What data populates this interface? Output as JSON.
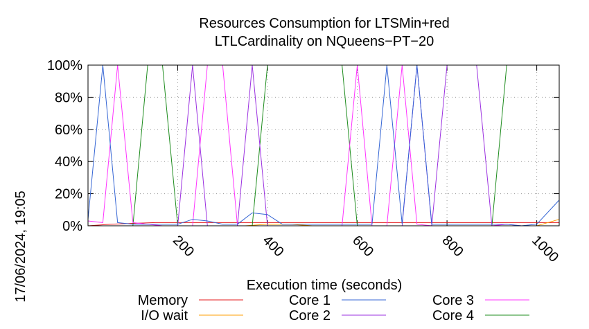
{
  "chart_data": {
    "type": "line",
    "title": "Resources Consumption for LTSMin+red",
    "subtitle": "LTLCardinality on NQueens−PT−20",
    "xlabel": "Execution time (seconds)",
    "ylabel": "",
    "timestamp": "17/06/2024, 19:05",
    "xlim": [
      0,
      1050
    ],
    "ylim": [
      0,
      100
    ],
    "x_ticks": [
      200,
      400,
      600,
      800,
      1000
    ],
    "x_tick_labels": [
      "200",
      "400",
      "600",
      "800",
      "1000"
    ],
    "y_ticks": [
      0,
      20,
      40,
      60,
      80,
      100
    ],
    "y_tick_labels": [
      "0%",
      "20%",
      "40%",
      "60%",
      "80%",
      "100%"
    ],
    "grid": true,
    "legend_placement": "bottom",
    "series": [
      {
        "name": "Memory",
        "color": "#e41a1c",
        "points": [
          [
            0,
            0
          ],
          [
            50,
            1
          ],
          [
            100,
            1.5
          ],
          [
            150,
            2
          ],
          [
            200,
            2
          ],
          [
            250,
            2
          ],
          [
            300,
            2
          ],
          [
            350,
            2
          ],
          [
            400,
            2
          ],
          [
            450,
            2
          ],
          [
            500,
            2
          ],
          [
            600,
            2
          ],
          [
            700,
            2
          ],
          [
            800,
            2
          ],
          [
            900,
            2
          ],
          [
            1000,
            2
          ],
          [
            1050,
            2
          ]
        ]
      },
      {
        "name": "I/O wait",
        "color": "#ff9f00",
        "points": [
          [
            0,
            0
          ],
          [
            50,
            0
          ],
          [
            100,
            0
          ],
          [
            200,
            0
          ],
          [
            300,
            0
          ],
          [
            350,
            0
          ],
          [
            400,
            1
          ],
          [
            450,
            1
          ],
          [
            500,
            0
          ],
          [
            600,
            0
          ],
          [
            700,
            0
          ],
          [
            800,
            0
          ],
          [
            900,
            0
          ],
          [
            1000,
            0
          ],
          [
            1050,
            4
          ]
        ]
      },
      {
        "name": "Core 1",
        "color": "#3465d4",
        "points": [
          [
            0,
            4
          ],
          [
            33,
            100
          ],
          [
            66,
            2
          ],
          [
            100,
            1
          ],
          [
            150,
            1
          ],
          [
            200,
            1
          ],
          [
            233,
            4
          ],
          [
            266,
            3
          ],
          [
            300,
            1
          ],
          [
            333,
            1
          ],
          [
            366,
            8
          ],
          [
            400,
            7
          ],
          [
            433,
            1
          ],
          [
            466,
            1
          ],
          [
            500,
            1
          ],
          [
            533,
            1
          ],
          [
            566,
            1
          ],
          [
            600,
            1
          ],
          [
            633,
            1
          ],
          [
            666,
            100
          ],
          [
            700,
            1
          ],
          [
            733,
            100
          ],
          [
            766,
            1
          ],
          [
            800,
            1
          ],
          [
            833,
            1
          ],
          [
            866,
            1
          ],
          [
            900,
            1
          ],
          [
            933,
            1
          ],
          [
            966,
            0
          ],
          [
            1000,
            1
          ],
          [
            1050,
            16
          ]
        ]
      },
      {
        "name": "Core 2",
        "color": "#9b30e0",
        "points": [
          [
            0,
            0
          ],
          [
            50,
            0
          ],
          [
            100,
            0
          ],
          [
            150,
            0
          ],
          [
            200,
            0
          ],
          [
            233,
            100
          ],
          [
            266,
            0
          ],
          [
            300,
            0
          ],
          [
            333,
            0
          ],
          [
            366,
            100
          ],
          [
            400,
            0
          ],
          [
            433,
            0
          ],
          [
            466,
            0
          ],
          [
            500,
            0
          ],
          [
            600,
            0
          ],
          [
            666,
            0
          ],
          [
            700,
            0
          ],
          [
            733,
            100
          ],
          [
            766,
            0
          ],
          [
            800,
            100
          ],
          [
            833,
            100
          ],
          [
            866,
            100
          ],
          [
            900,
            0
          ],
          [
            933,
            0
          ],
          [
            966,
            0
          ],
          [
            1000,
            0
          ],
          [
            1050,
            0
          ]
        ]
      },
      {
        "name": "Core 3",
        "color": "#ff33ff",
        "points": [
          [
            0,
            3
          ],
          [
            33,
            2
          ],
          [
            66,
            100
          ],
          [
            100,
            2
          ],
          [
            133,
            1
          ],
          [
            166,
            0
          ],
          [
            200,
            0
          ],
          [
            233,
            0
          ],
          [
            266,
            100
          ],
          [
            300,
            100
          ],
          [
            333,
            0
          ],
          [
            366,
            0
          ],
          [
            400,
            0
          ],
          [
            433,
            0
          ],
          [
            500,
            0
          ],
          [
            566,
            0
          ],
          [
            600,
            100
          ],
          [
            633,
            0
          ],
          [
            666,
            0
          ],
          [
            700,
            100
          ],
          [
            733,
            1
          ],
          [
            766,
            0
          ],
          [
            800,
            0
          ],
          [
            866,
            0
          ],
          [
            900,
            0
          ],
          [
            933,
            1
          ],
          [
            966,
            0
          ],
          [
            1000,
            0
          ],
          [
            1050,
            0
          ]
        ]
      },
      {
        "name": "Core 4",
        "color": "#1e8c1e",
        "points": [
          [
            0,
            0
          ],
          [
            33,
            0
          ],
          [
            66,
            0
          ],
          [
            100,
            0
          ],
          [
            133,
            100
          ],
          [
            166,
            100
          ],
          [
            200,
            0
          ],
          [
            233,
            0
          ],
          [
            266,
            0
          ],
          [
            300,
            0
          ],
          [
            333,
            0
          ],
          [
            366,
            0
          ],
          [
            400,
            100
          ],
          [
            433,
            100
          ],
          [
            466,
            100
          ],
          [
            500,
            100
          ],
          [
            533,
            100
          ],
          [
            566,
            100
          ],
          [
            600,
            0
          ],
          [
            633,
            0
          ],
          [
            666,
            0
          ],
          [
            700,
            0
          ],
          [
            733,
            0
          ],
          [
            766,
            0
          ],
          [
            800,
            0
          ],
          [
            833,
            0
          ],
          [
            866,
            0
          ],
          [
            900,
            0
          ],
          [
            933,
            100
          ],
          [
            966,
            100
          ],
          [
            1000,
            100
          ],
          [
            1030,
            100
          ]
        ]
      }
    ]
  }
}
